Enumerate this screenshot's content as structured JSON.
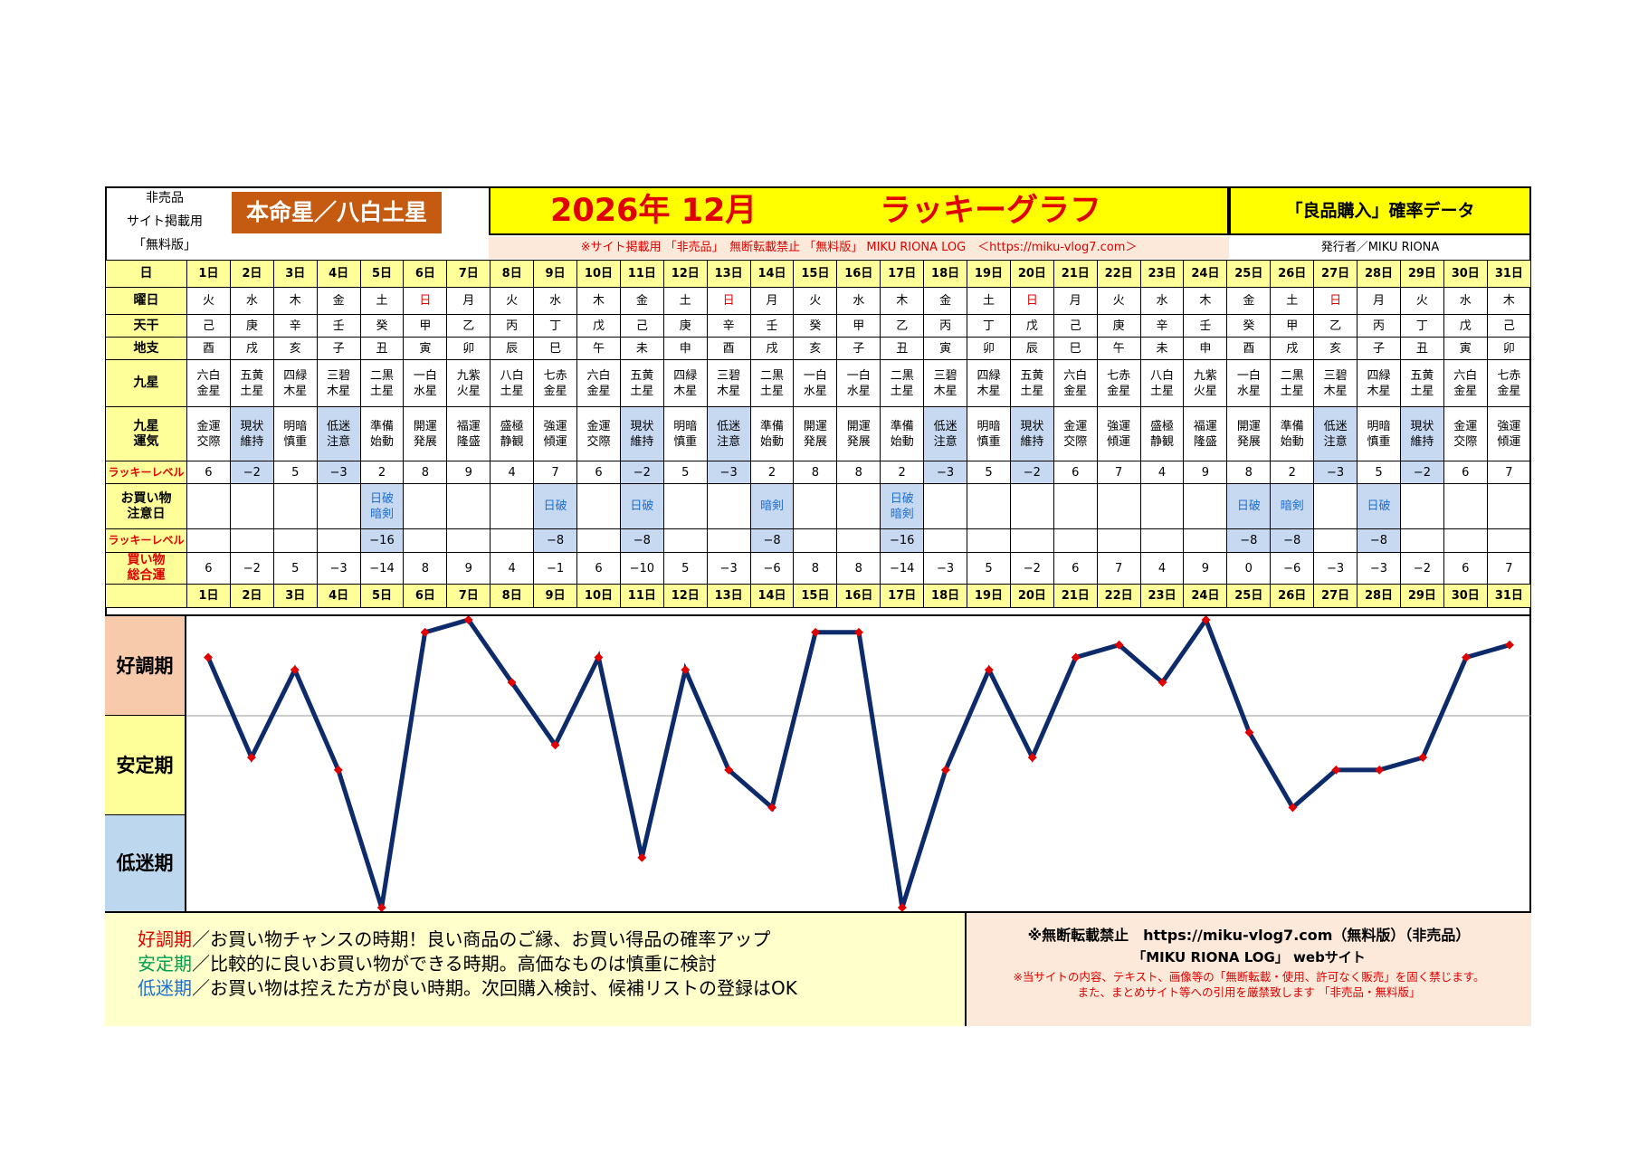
{
  "header": {
    "left_lines": [
      "非売品",
      "サイト掲載用",
      "「無料版」"
    ],
    "badge": "本命星／八白土星",
    "year_month": "2026年 12月",
    "graph_name": "ラッキーグラフ",
    "prob_title": "「良品購入」確率データ",
    "notice": "※サイト掲載用 「非売品」　無断転載禁止 「無料版」 MIKU RIONA LOG　＜https://miku-vlog7.com＞",
    "publisher": "発行者／MIKU RIONA"
  },
  "row_labels": {
    "day": "日",
    "weekday": "曜日",
    "stem": "天干",
    "branch": "地支",
    "star": "九星",
    "fortune": [
      "九星",
      "運気"
    ],
    "lucky": "ラッキーレベル",
    "caution": [
      "お買い物",
      "注意日"
    ],
    "lucky2": "ラッキーレベル",
    "total": [
      "買い物",
      "総合運"
    ]
  },
  "days": [
    {
      "d": "1日",
      "w": "火",
      "s": "己",
      "b": "酉",
      "star": [
        "六白",
        "金星"
      ],
      "fo": [
        "金運",
        "交際"
      ],
      "lv": "6",
      "ca": [],
      "l2": "",
      "t": "6"
    },
    {
      "d": "2日",
      "w": "水",
      "s": "庚",
      "b": "戌",
      "star": [
        "五黄",
        "土星"
      ],
      "fo": [
        "現状",
        "維持"
      ],
      "lv": "−2",
      "ca": [],
      "l2": "",
      "t": "−2"
    },
    {
      "d": "3日",
      "w": "木",
      "s": "辛",
      "b": "亥",
      "star": [
        "四緑",
        "木星"
      ],
      "fo": [
        "明暗",
        "慎重"
      ],
      "lv": "5",
      "ca": [],
      "l2": "",
      "t": "5"
    },
    {
      "d": "4日",
      "w": "金",
      "s": "壬",
      "b": "子",
      "star": [
        "三碧",
        "木星"
      ],
      "fo": [
        "低迷",
        "注意"
      ],
      "lv": "−3",
      "ca": [],
      "l2": "",
      "t": "−3"
    },
    {
      "d": "5日",
      "w": "土",
      "s": "癸",
      "b": "丑",
      "star": [
        "二黒",
        "土星"
      ],
      "fo": [
        "準備",
        "始動"
      ],
      "lv": "2",
      "ca": [
        "日破",
        "暗剣"
      ],
      "l2": "−16",
      "t": "−14"
    },
    {
      "d": "6日",
      "w": "日",
      "s": "甲",
      "b": "寅",
      "star": [
        "一白",
        "水星"
      ],
      "fo": [
        "開運",
        "発展"
      ],
      "lv": "8",
      "ca": [],
      "l2": "",
      "t": "8"
    },
    {
      "d": "7日",
      "w": "月",
      "s": "乙",
      "b": "卯",
      "star": [
        "九紫",
        "火星"
      ],
      "fo": [
        "福運",
        "隆盛"
      ],
      "lv": "9",
      "ca": [],
      "l2": "",
      "t": "9"
    },
    {
      "d": "8日",
      "w": "火",
      "s": "丙",
      "b": "辰",
      "star": [
        "八白",
        "土星"
      ],
      "fo": [
        "盛極",
        "静観"
      ],
      "lv": "4",
      "ca": [],
      "l2": "",
      "t": "4"
    },
    {
      "d": "9日",
      "w": "水",
      "s": "丁",
      "b": "巳",
      "star": [
        "七赤",
        "金星"
      ],
      "fo": [
        "強運",
        "傾運"
      ],
      "lv": "7",
      "ca": [
        "日破"
      ],
      "l2": "−8",
      "t": "−1"
    },
    {
      "d": "10日",
      "w": "木",
      "s": "戊",
      "b": "午",
      "star": [
        "六白",
        "金星"
      ],
      "fo": [
        "金運",
        "交際"
      ],
      "lv": "6",
      "ca": [],
      "l2": "",
      "t": "6"
    },
    {
      "d": "11日",
      "w": "金",
      "s": "己",
      "b": "未",
      "star": [
        "五黄",
        "土星"
      ],
      "fo": [
        "現状",
        "維持"
      ],
      "lv": "−2",
      "ca": [
        "日破"
      ],
      "l2": "−8",
      "t": "−10"
    },
    {
      "d": "12日",
      "w": "土",
      "s": "庚",
      "b": "申",
      "star": [
        "四緑",
        "木星"
      ],
      "fo": [
        "明暗",
        "慎重"
      ],
      "lv": "5",
      "ca": [],
      "l2": "",
      "t": "5"
    },
    {
      "d": "13日",
      "w": "日",
      "s": "辛",
      "b": "酉",
      "star": [
        "三碧",
        "木星"
      ],
      "fo": [
        "低迷",
        "注意"
      ],
      "lv": "−3",
      "ca": [],
      "l2": "",
      "t": "−3"
    },
    {
      "d": "14日",
      "w": "月",
      "s": "壬",
      "b": "戌",
      "star": [
        "二黒",
        "土星"
      ],
      "fo": [
        "準備",
        "始動"
      ],
      "lv": "2",
      "ca": [
        "暗剣"
      ],
      "l2": "−8",
      "t": "−6"
    },
    {
      "d": "15日",
      "w": "火",
      "s": "癸",
      "b": "亥",
      "star": [
        "一白",
        "水星"
      ],
      "fo": [
        "開運",
        "発展"
      ],
      "lv": "8",
      "ca": [],
      "l2": "",
      "t": "8"
    },
    {
      "d": "16日",
      "w": "水",
      "s": "甲",
      "b": "子",
      "star": [
        "一白",
        "水星"
      ],
      "fo": [
        "開運",
        "発展"
      ],
      "lv": "8",
      "ca": [],
      "l2": "",
      "t": "8"
    },
    {
      "d": "17日",
      "w": "木",
      "s": "乙",
      "b": "丑",
      "star": [
        "二黒",
        "土星"
      ],
      "fo": [
        "準備",
        "始動"
      ],
      "lv": "2",
      "ca": [
        "日破",
        "暗剣"
      ],
      "l2": "−16",
      "t": "−14"
    },
    {
      "d": "18日",
      "w": "金",
      "s": "丙",
      "b": "寅",
      "star": [
        "三碧",
        "木星"
      ],
      "fo": [
        "低迷",
        "注意"
      ],
      "lv": "−3",
      "ca": [],
      "l2": "",
      "t": "−3"
    },
    {
      "d": "19日",
      "w": "土",
      "s": "丁",
      "b": "卯",
      "star": [
        "四緑",
        "木星"
      ],
      "fo": [
        "明暗",
        "慎重"
      ],
      "lv": "5",
      "ca": [],
      "l2": "",
      "t": "5"
    },
    {
      "d": "20日",
      "w": "日",
      "s": "戊",
      "b": "辰",
      "star": [
        "五黄",
        "土星"
      ],
      "fo": [
        "現状",
        "維持"
      ],
      "lv": "−2",
      "ca": [],
      "l2": "",
      "t": "−2"
    },
    {
      "d": "21日",
      "w": "月",
      "s": "己",
      "b": "巳",
      "star": [
        "六白",
        "金星"
      ],
      "fo": [
        "金運",
        "交際"
      ],
      "lv": "6",
      "ca": [],
      "l2": "",
      "t": "6"
    },
    {
      "d": "22日",
      "w": "火",
      "s": "庚",
      "b": "午",
      "star": [
        "七赤",
        "金星"
      ],
      "fo": [
        "強運",
        "傾運"
      ],
      "lv": "7",
      "ca": [],
      "l2": "",
      "t": "7"
    },
    {
      "d": "23日",
      "w": "水",
      "s": "辛",
      "b": "未",
      "star": [
        "八白",
        "土星"
      ],
      "fo": [
        "盛極",
        "静観"
      ],
      "lv": "4",
      "ca": [],
      "l2": "",
      "t": "4"
    },
    {
      "d": "24日",
      "w": "木",
      "s": "壬",
      "b": "申",
      "star": [
        "九紫",
        "火星"
      ],
      "fo": [
        "福運",
        "隆盛"
      ],
      "lv": "9",
      "ca": [],
      "l2": "",
      "t": "9"
    },
    {
      "d": "25日",
      "w": "金",
      "s": "癸",
      "b": "酉",
      "star": [
        "一白",
        "水星"
      ],
      "fo": [
        "開運",
        "発展"
      ],
      "lv": "8",
      "ca": [
        "日破"
      ],
      "l2": "−8",
      "t": "0"
    },
    {
      "d": "26日",
      "w": "土",
      "s": "甲",
      "b": "戌",
      "star": [
        "二黒",
        "土星"
      ],
      "fo": [
        "準備",
        "始動"
      ],
      "lv": "2",
      "ca": [
        "暗剣"
      ],
      "l2": "−8",
      "t": "−6"
    },
    {
      "d": "27日",
      "w": "日",
      "s": "乙",
      "b": "亥",
      "star": [
        "三碧",
        "木星"
      ],
      "fo": [
        "低迷",
        "注意"
      ],
      "lv": "−3",
      "ca": [],
      "l2": "",
      "t": "−3"
    },
    {
      "d": "28日",
      "w": "月",
      "s": "丙",
      "b": "子",
      "star": [
        "四緑",
        "木星"
      ],
      "fo": [
        "明暗",
        "慎重"
      ],
      "lv": "5",
      "ca": [
        "日破"
      ],
      "l2": "−8",
      "t": "−3"
    },
    {
      "d": "29日",
      "w": "火",
      "s": "丁",
      "b": "丑",
      "star": [
        "五黄",
        "土星"
      ],
      "fo": [
        "現状",
        "維持"
      ],
      "lv": "−2",
      "ca": [],
      "l2": "",
      "t": "−2"
    },
    {
      "d": "30日",
      "w": "水",
      "s": "戊",
      "b": "寅",
      "star": [
        "六白",
        "金星"
      ],
      "fo": [
        "金運",
        "交際"
      ],
      "lv": "6",
      "ca": [],
      "l2": "",
      "t": "6"
    },
    {
      "d": "31日",
      "w": "木",
      "s": "己",
      "b": "卯",
      "star": [
        "七赤",
        "金星"
      ],
      "fo": [
        "強運",
        "傾運"
      ],
      "lv": "7",
      "ca": [],
      "l2": "",
      "t": "7"
    }
  ],
  "zones": [
    "好調期",
    "安定期",
    "低迷期"
  ],
  "chart_data": {
    "type": "line",
    "x": [
      "1日",
      "2日",
      "3日",
      "4日",
      "5日",
      "6日",
      "7日",
      "8日",
      "9日",
      "10日",
      "11日",
      "12日",
      "13日",
      "14日",
      "15日",
      "16日",
      "17日",
      "18日",
      "19日",
      "20日",
      "21日",
      "22日",
      "23日",
      "24日",
      "25日",
      "26日",
      "27日",
      "28日",
      "29日",
      "30日",
      "31日"
    ],
    "series": [
      {
        "values": [
          6,
          -2,
          5,
          -3,
          -14,
          8,
          9,
          4,
          -1,
          6,
          -10,
          5,
          -3,
          -6,
          8,
          8,
          -14,
          -3,
          5,
          -2,
          6,
          7,
          4,
          9,
          0,
          -6,
          -3,
          -3,
          -2,
          6,
          7
        ],
        "color": "#0d2a6b",
        "marker_color": "#e00000"
      }
    ],
    "ylim": [
      -14,
      9
    ],
    "grid": "single horizontal line between the upper and middle bands",
    "bands": [
      "好調期",
      "安定期",
      "低迷期"
    ]
  },
  "legend": {
    "k1": "好調期",
    "t1": "／お買い物チャンスの時期！良い商品のご縁、お買い得品の確率アップ",
    "k2": "安定期",
    "t2": "／比較的に良いお買い物ができる時期。高価なものは慎重に検討",
    "k3": "低迷期",
    "t3": "／お買い物は控えた方が良い時期。次回購入検討、候補リストの登録はOK"
  },
  "copy": {
    "l1": "※無断転載禁止　https://miku-vlog7.com（無料版）（非売品）",
    "l2": "「MIKU RIONA LOG」 webサイト",
    "l3": "※当サイトの内容、テキスト、画像等の「無断転載・使用、許可なく販売」を固く禁じます。",
    "l4": "また、まとめサイト等への引用を厳禁致します 「非売品・無料版」"
  }
}
